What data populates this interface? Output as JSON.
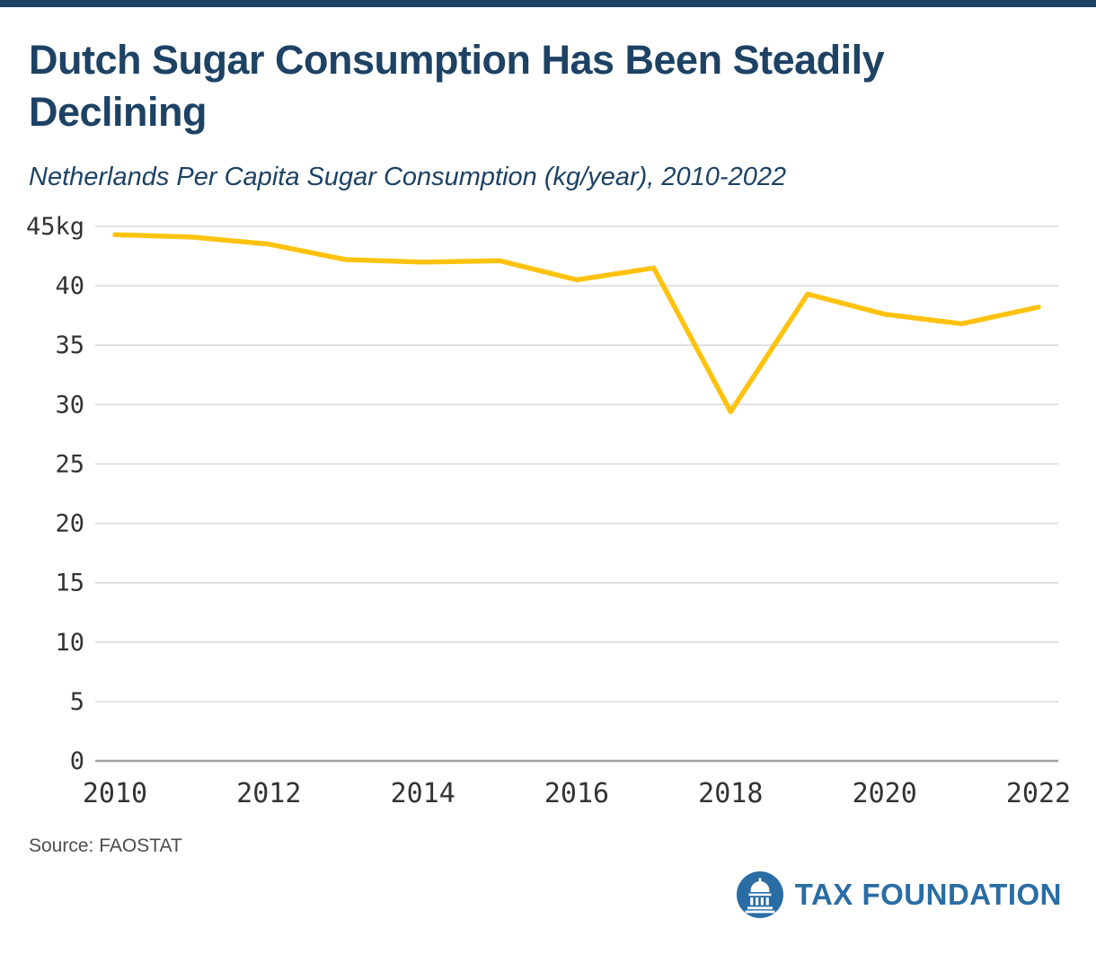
{
  "page": {
    "title": "Dutch Sugar Consumption Has Been Steadily Declining",
    "subtitle": "Netherlands Per Capita Sugar Consumption (kg/year), 2010-2022",
    "source": "Source: FAOSTAT",
    "logo_text": "TAX FOUNDATION"
  },
  "colors": {
    "navy": "#1d4264",
    "line_yellow": "#ffc20e",
    "grid_gray": "#d9d9d9",
    "axis_gray": "#a3a3a3",
    "tick_text": "#333333",
    "logo_blue": "#2a6da4"
  },
  "chart_data": {
    "type": "line",
    "title": "Dutch Sugar Consumption Has Been Steadily Declining",
    "subtitle": "Netherlands Per Capita Sugar Consumption (kg/year), 2010-2022",
    "x": [
      2010,
      2011,
      2012,
      2013,
      2014,
      2015,
      2016,
      2017,
      2018,
      2019,
      2020,
      2021,
      2022
    ],
    "series": [
      {
        "name": "Per capita sugar consumption (kg/year)",
        "values": [
          44.3,
          44.1,
          43.5,
          42.2,
          42.0,
          42.1,
          40.5,
          41.5,
          29.4,
          39.3,
          37.6,
          36.8,
          38.2
        ]
      }
    ],
    "xlabel": "",
    "ylabel": "",
    "ylim": [
      0,
      45
    ],
    "yticks": [
      0,
      5,
      10,
      15,
      20,
      25,
      30,
      35,
      40,
      45
    ],
    "ytick_labels": [
      "0",
      "5",
      "10",
      "15",
      "20",
      "25",
      "30",
      "35",
      "40",
      "45kg"
    ],
    "xtick_labels": [
      2010,
      2012,
      2014,
      2016,
      2018,
      2020,
      2022
    ],
    "grid": true,
    "legend": "none",
    "source": "Source: FAOSTAT"
  }
}
